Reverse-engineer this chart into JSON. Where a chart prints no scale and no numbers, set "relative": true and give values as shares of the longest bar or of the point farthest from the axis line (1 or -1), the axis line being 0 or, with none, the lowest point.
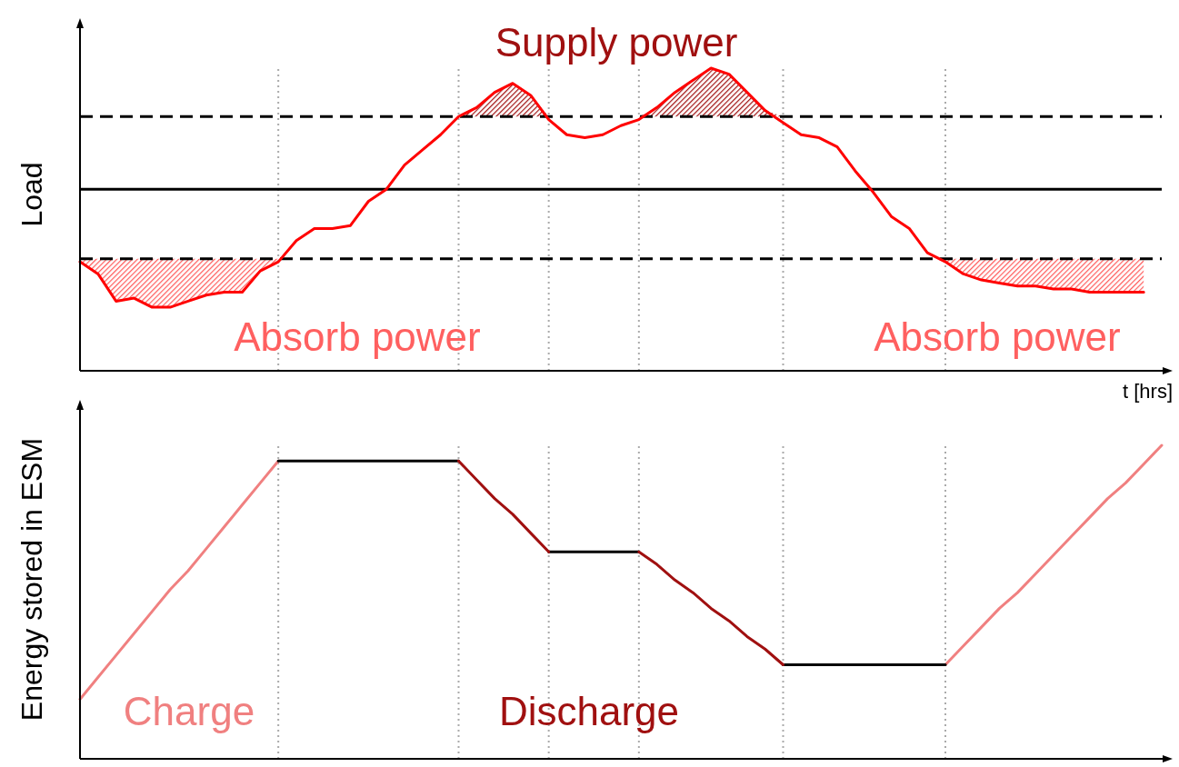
{
  "chart_data": [
    {
      "type": "line",
      "relative": true,
      "ylabel": "Load",
      "xlabel": "t [hrs]",
      "line_style": "solid",
      "grid": "x",
      "categories": [
        null,
        null,
        null,
        null,
        null,
        null,
        null,
        null,
        null,
        null,
        null,
        null,
        null,
        null,
        null,
        null,
        null,
        null,
        null,
        null,
        null,
        null,
        null,
        null,
        null,
        null,
        null,
        null,
        null,
        null,
        null,
        null,
        null,
        null,
        null,
        null,
        null,
        null,
        null,
        null,
        null,
        null,
        null,
        null,
        null,
        null,
        null,
        null,
        null,
        null,
        null,
        null,
        null,
        null,
        null,
        null,
        null,
        null,
        null,
        null,
        null
      ],
      "series": [
        {
          "color": "#ff0000",
          "values": [
            0.36,
            0.32,
            0.23,
            0.24,
            0.21,
            0.21,
            0.23,
            0.25,
            0.26,
            0.26,
            0.33,
            0.36,
            0.43,
            0.47,
            0.47,
            0.48,
            0.56,
            0.6,
            0.68,
            0.73,
            0.78,
            0.84,
            0.87,
            0.92,
            0.95,
            0.91,
            0.83,
            0.78,
            0.77,
            0.78,
            0.81,
            0.83,
            0.87,
            0.92,
            0.96,
            1.0,
            0.98,
            0.92,
            0.86,
            0.82,
            0.78,
            0.77,
            0.74,
            0.66,
            0.59,
            0.51,
            0.47,
            0.39,
            0.36,
            0.32,
            0.3,
            0.29,
            0.28,
            0.28,
            0.27,
            0.27,
            0.26,
            0.26,
            0.26,
            0.26,
            null
          ],
          "lower": [
            0.36,
            0.32,
            0.23,
            0.24,
            0.21,
            0.21,
            0.23,
            0.25,
            0.26,
            0.26,
            0.33,
            0.36,
            null,
            null,
            null,
            null,
            null,
            null,
            null,
            null,
            null,
            0.84,
            0.84,
            0.84,
            0.84,
            0.84,
            0.84,
            null,
            null,
            null,
            null,
            0.84,
            0.84,
            0.84,
            0.84,
            0.84,
            0.84,
            0.84,
            0.84,
            0.84,
            null,
            null,
            null,
            null,
            null,
            null,
            null,
            null,
            0.36,
            0.32,
            0.3,
            0.29,
            0.28,
            0.28,
            0.27,
            0.27,
            0.26,
            0.26,
            0.26,
            0.26,
            null
          ],
          "upper": [
            0.37,
            0.37,
            0.37,
            0.37,
            0.37,
            0.37,
            0.37,
            0.37,
            0.37,
            0.37,
            0.37,
            0.37,
            null,
            null,
            null,
            null,
            null,
            null,
            null,
            null,
            null,
            0.84,
            0.87,
            0.92,
            0.95,
            0.91,
            0.84,
            null,
            null,
            null,
            null,
            0.84,
            0.87,
            0.92,
            0.96,
            1.0,
            0.98,
            0.92,
            0.86,
            0.84,
            null,
            null,
            null,
            null,
            null,
            null,
            null,
            null,
            0.37,
            0.37,
            0.37,
            0.37,
            0.37,
            0.37,
            0.37,
            0.37,
            0.37,
            0.37,
            0.37,
            0.37,
            null
          ]
        }
      ],
      "ref_lines": [
        {
          "axis": "y",
          "value": 0.84,
          "color": "#000000",
          "line_style": "dashed"
        },
        {
          "axis": "y",
          "value": 0.6,
          "color": "#000000",
          "line_style": "solid"
        },
        {
          "axis": "y",
          "value": 0.37,
          "color": "#000000",
          "line_style": "dashed"
        }
      ],
      "annotations": [
        "Supply power",
        "Absorb power",
        "Absorb power"
      ]
    },
    {
      "type": "line",
      "relative": true,
      "ylabel": "Energy stored in ESM",
      "line_style": "solid",
      "grid": "x",
      "categories": [
        null,
        null,
        null,
        null,
        null,
        null,
        null,
        null,
        null,
        null,
        null,
        null,
        null,
        null,
        null,
        null,
        null,
        null,
        null,
        null,
        null,
        null,
        null,
        null,
        null,
        null,
        null,
        null,
        null,
        null,
        null,
        null,
        null,
        null,
        null,
        null,
        null,
        null,
        null,
        null,
        null,
        null,
        null,
        null,
        null,
        null,
        null,
        null,
        null,
        null,
        null,
        null,
        null,
        null,
        null,
        null,
        null,
        null,
        null,
        null,
        null
      ],
      "series": [
        {
          "color": "#f08080",
          "values": [
            0.19,
            0.26,
            0.33,
            0.4,
            0.47,
            0.54,
            0.6,
            0.67,
            0.74,
            0.81,
            0.88,
            0.95,
            null,
            null,
            null,
            null,
            null,
            null,
            null,
            null,
            null,
            null,
            null,
            null,
            null,
            null,
            null,
            null,
            null,
            null,
            null,
            null,
            null,
            null,
            null,
            null,
            null,
            null,
            null,
            null,
            null,
            null,
            null,
            null,
            null,
            null,
            null,
            null,
            0.3,
            0.36,
            0.42,
            0.48,
            0.53,
            0.59,
            0.65,
            0.71,
            0.77,
            0.83,
            0.88,
            0.94,
            1.0
          ]
        },
        {
          "color": "#000000",
          "values": [
            null,
            null,
            null,
            null,
            null,
            null,
            null,
            null,
            null,
            null,
            null,
            0.95,
            0.95,
            0.95,
            0.95,
            0.95,
            0.95,
            0.95,
            0.95,
            0.95,
            0.95,
            0.95,
            null,
            null,
            null,
            null,
            0.66,
            0.66,
            0.66,
            0.66,
            0.66,
            0.66,
            null,
            null,
            null,
            null,
            null,
            null,
            null,
            0.3,
            0.3,
            0.3,
            0.3,
            0.3,
            0.3,
            0.3,
            0.3,
            0.3,
            0.3,
            null,
            null,
            null,
            null,
            null,
            null,
            null,
            null,
            null,
            null,
            null,
            null
          ]
        },
        {
          "color": "#a01010",
          "values": [
            null,
            null,
            null,
            null,
            null,
            null,
            null,
            null,
            null,
            null,
            null,
            null,
            null,
            null,
            null,
            null,
            null,
            null,
            null,
            null,
            null,
            0.95,
            0.89,
            0.83,
            0.78,
            0.72,
            0.66,
            null,
            null,
            null,
            null,
            0.66,
            0.62,
            0.57,
            0.53,
            0.48,
            0.44,
            0.39,
            0.35,
            0.3,
            null,
            null,
            null,
            null,
            null,
            null,
            null,
            null,
            null,
            null,
            null,
            null,
            null,
            null,
            null,
            null,
            null,
            null,
            null,
            null,
            null
          ]
        }
      ],
      "annotations": [
        "Charge",
        "Discharge"
      ]
    }
  ]
}
